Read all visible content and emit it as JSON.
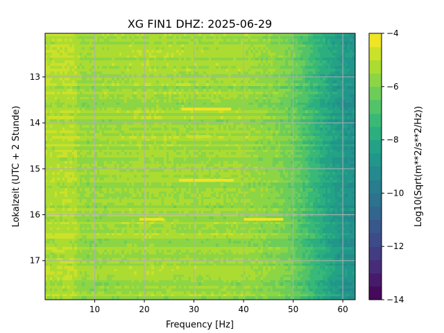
{
  "chart_data": {
    "type": "heatmap",
    "title": "XG FIN1  DHZ: 2025-06-29",
    "xlabel": "Frequency [Hz]",
    "ylabel": "Lokalzeit (UTC + 2 Stunde)",
    "xlim": [
      0,
      62.5
    ],
    "ylim": [
      17.85,
      12.05
    ],
    "x_ticks": [
      10,
      20,
      30,
      40,
      50,
      60
    ],
    "x_tick_labels": [
      "10",
      "20",
      "30",
      "40",
      "50",
      "60"
    ],
    "y_ticks": [
      13,
      14,
      15,
      16,
      17
    ],
    "y_tick_labels": [
      "13",
      "14",
      "15",
      "16",
      "17"
    ],
    "y_inverted": true,
    "grid": true,
    "colorbar": {
      "label": "Log10(Sqrt(m**2/s**2/Hz))",
      "colormap": "viridis",
      "range": [
        -14,
        -4
      ],
      "ticks": [
        -4,
        -6,
        -8,
        -10,
        -12,
        -14
      ],
      "tick_labels": [
        "−4",
        "−6",
        "−8",
        "−10",
        "−12",
        "−14"
      ],
      "levels": 20
    },
    "background_level_profile": [
      {
        "freq": 1,
        "value": -5.2
      },
      {
        "freq": 6,
        "value": -5.1
      },
      {
        "freq": 7,
        "value": -5.6
      },
      {
        "freq": 20,
        "value": -5.4
      },
      {
        "freq": 30,
        "value": -5.5
      },
      {
        "freq": 40,
        "value": -5.5
      },
      {
        "freq": 47,
        "value": -5.9
      },
      {
        "freq": 50,
        "value": -6.3
      },
      {
        "freq": 53,
        "value": -7.0
      },
      {
        "freq": 56,
        "value": -7.8
      },
      {
        "freq": 59,
        "value": -8.5
      },
      {
        "freq": 62,
        "value": -8.9
      }
    ],
    "highlighted_features": [
      {
        "time": 13.7,
        "freq_start": 27.5,
        "freq_end": 37.5,
        "value": -4.3
      },
      {
        "time": 14.3,
        "freq_start": 28.5,
        "freq_end": 33.5,
        "value": -4.6
      },
      {
        "time": 15.25,
        "freq_start": 27,
        "freq_end": 38,
        "value": -4.5
      },
      {
        "time": 16.1,
        "freq_start": 19,
        "freq_end": 24,
        "value": -4.4
      },
      {
        "time": 16.1,
        "freq_start": 40,
        "freq_end": 48,
        "value": -4.5
      }
    ]
  },
  "colors": {
    "grid": "#b0b0b0",
    "axis": "#000000",
    "background": "#ffffff"
  }
}
